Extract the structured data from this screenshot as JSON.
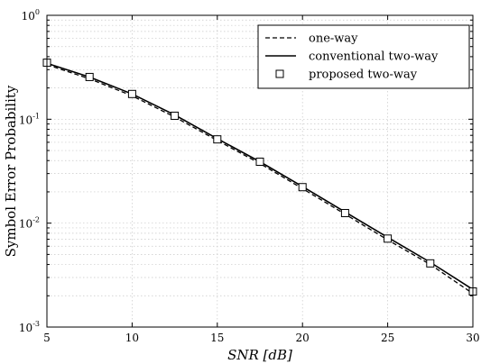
{
  "chart_data": {
    "type": "line",
    "title": "",
    "xlabel": "SNR [dB]",
    "ylabel": "Symbol Error Probability",
    "xlim": [
      5,
      30
    ],
    "ylim": [
      0.001,
      1
    ],
    "yscale": "log",
    "grid": true,
    "legend_position": "top-right",
    "x_ticks": [
      5,
      10,
      15,
      20,
      25,
      30
    ],
    "x_tick_labels": [
      "5",
      "10",
      "15",
      "20",
      "25",
      "30"
    ],
    "y_ticks": [
      0.001,
      0.01,
      0.1,
      1
    ],
    "y_tick_labels": [
      {
        "base": "10",
        "exp": "-3"
      },
      {
        "base": "10",
        "exp": "-2"
      },
      {
        "base": "10",
        "exp": "-1"
      },
      {
        "base": "10",
        "exp": "0"
      }
    ],
    "x": [
      5,
      7.5,
      10,
      12.5,
      15,
      17.5,
      20,
      22.5,
      25,
      27.5,
      30
    ],
    "series": [
      {
        "name": "one-way",
        "style": "dashed",
        "color": "#000000",
        "values": [
          0.335,
          0.245,
          0.168,
          0.105,
          0.0625,
          0.0375,
          0.0215,
          0.0122,
          0.0069,
          0.004,
          0.0021
        ]
      },
      {
        "name": "conventional two-way",
        "style": "solid",
        "color": "#000000",
        "values": [
          0.345,
          0.255,
          0.175,
          0.11,
          0.065,
          0.039,
          0.0225,
          0.0128,
          0.0073,
          0.0042,
          0.0023
        ]
      },
      {
        "name": "proposed two-way",
        "style": "marker-square",
        "color": "#000000",
        "values": [
          0.35,
          0.255,
          0.175,
          0.108,
          0.064,
          0.039,
          0.0222,
          0.0125,
          0.0071,
          0.0041,
          0.0022
        ]
      }
    ]
  }
}
